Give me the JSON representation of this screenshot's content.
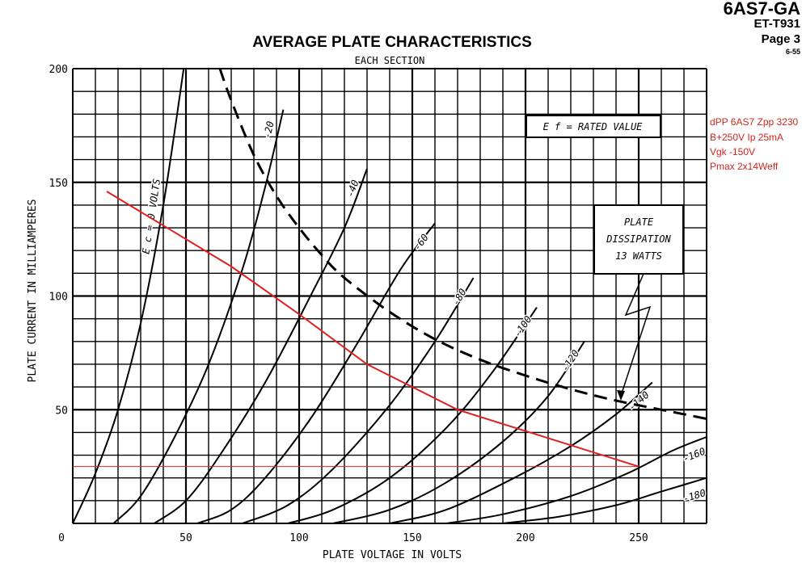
{
  "header": {
    "tube_name": "6AS7-GA",
    "doc_code": "ET-T931",
    "page": "Page 3",
    "date": "6-55"
  },
  "annotations": {
    "lines": [
      "dPP 6AS7 Zpp 3230",
      "B+250V Ip 25mA",
      "Vgk -150V",
      "Pmax 2x14Weff"
    ],
    "color": "#d0261e"
  },
  "chart_data": {
    "type": "line",
    "title": "AVERAGE PLATE CHARACTERISTICS",
    "subtitle": "EACH SECTION",
    "xlabel": "PLATE VOLTAGE IN VOLTS",
    "ylabel": "PLATE CURRENT IN MILLIAMPERES",
    "xlim": [
      0,
      280
    ],
    "ylim": [
      0,
      200
    ],
    "x_ticks": [
      "0",
      "50",
      "100",
      "150",
      "200",
      "250"
    ],
    "y_ticks": [
      "50",
      "100",
      "150",
      "200"
    ],
    "grid": true,
    "parameter_box": "E f = RATED VALUE",
    "dissipation_label": [
      "PLATE",
      "DISSIPATION",
      "13 WATTS"
    ],
    "grid_bias_curves": [
      {
        "label": "E c = 0 VOLTS",
        "points": [
          [
            0,
            0
          ],
          [
            10,
            22
          ],
          [
            20,
            50
          ],
          [
            30,
            88
          ],
          [
            40,
            140
          ],
          [
            49,
            200
          ]
        ]
      },
      {
        "label": "-20",
        "points": [
          [
            18,
            0
          ],
          [
            30,
            12
          ],
          [
            45,
            38
          ],
          [
            60,
            70
          ],
          [
            75,
            112
          ],
          [
            85,
            148
          ],
          [
            93,
            182
          ]
        ]
      },
      {
        "label": "-40",
        "points": [
          [
            36,
            0
          ],
          [
            50,
            10
          ],
          [
            65,
            30
          ],
          [
            85,
            62
          ],
          [
            105,
            100
          ],
          [
            120,
            130
          ],
          [
            130,
            156
          ]
        ]
      },
      {
        "label": "-60",
        "points": [
          [
            55,
            0
          ],
          [
            70,
            6
          ],
          [
            85,
            20
          ],
          [
            105,
            46
          ],
          [
            125,
            78
          ],
          [
            145,
            112
          ],
          [
            160,
            132
          ]
        ]
      },
      {
        "label": "-80",
        "points": [
          [
            75,
            0
          ],
          [
            95,
            8
          ],
          [
            115,
            24
          ],
          [
            140,
            52
          ],
          [
            160,
            80
          ],
          [
            177,
            108
          ]
        ]
      },
      {
        "label": "-100",
        "points": [
          [
            95,
            0
          ],
          [
            115,
            6
          ],
          [
            140,
            20
          ],
          [
            165,
            42
          ],
          [
            185,
            66
          ],
          [
            205,
            95
          ]
        ]
      },
      {
        "label": "-120",
        "points": [
          [
            115,
            0
          ],
          [
            140,
            6
          ],
          [
            165,
            18
          ],
          [
            190,
            36
          ],
          [
            210,
            56
          ],
          [
            226,
            80
          ]
        ]
      },
      {
        "label": "-140",
        "points": [
          [
            140,
            0
          ],
          [
            165,
            6
          ],
          [
            195,
            20
          ],
          [
            220,
            34
          ],
          [
            240,
            48
          ],
          [
            256,
            62
          ]
        ]
      },
      {
        "label": "-160",
        "points": [
          [
            165,
            0
          ],
          [
            190,
            4
          ],
          [
            220,
            12
          ],
          [
            245,
            22
          ],
          [
            265,
            32
          ],
          [
            280,
            38
          ]
        ]
      },
      {
        "label": "-180",
        "points": [
          [
            190,
            0
          ],
          [
            215,
            3
          ],
          [
            240,
            8
          ],
          [
            260,
            14
          ],
          [
            280,
            20
          ]
        ]
      }
    ],
    "dissipation_curve": {
      "label": "PLATE DISSIPATION 13 WATTS",
      "points": [
        [
          65,
          200
        ],
        [
          70,
          186
        ],
        [
          80,
          162
        ],
        [
          90,
          144
        ],
        [
          100,
          130
        ],
        [
          110,
          118
        ],
        [
          120,
          108
        ],
        [
          140,
          93
        ],
        [
          160,
          81
        ],
        [
          180,
          72
        ],
        [
          200,
          65
        ],
        [
          220,
          59
        ],
        [
          240,
          54
        ],
        [
          260,
          50
        ],
        [
          280,
          46
        ]
      ]
    },
    "load_line": {
      "color": "#e02020",
      "points": [
        [
          15,
          146
        ],
        [
          40,
          131
        ],
        [
          70,
          113
        ],
        [
          100,
          92
        ],
        [
          130,
          70
        ],
        [
          170,
          50
        ],
        [
          250,
          25
        ]
      ]
    },
    "reference_line": {
      "color": "#e02020",
      "y": 25,
      "x_range": [
        0,
        250
      ]
    }
  }
}
